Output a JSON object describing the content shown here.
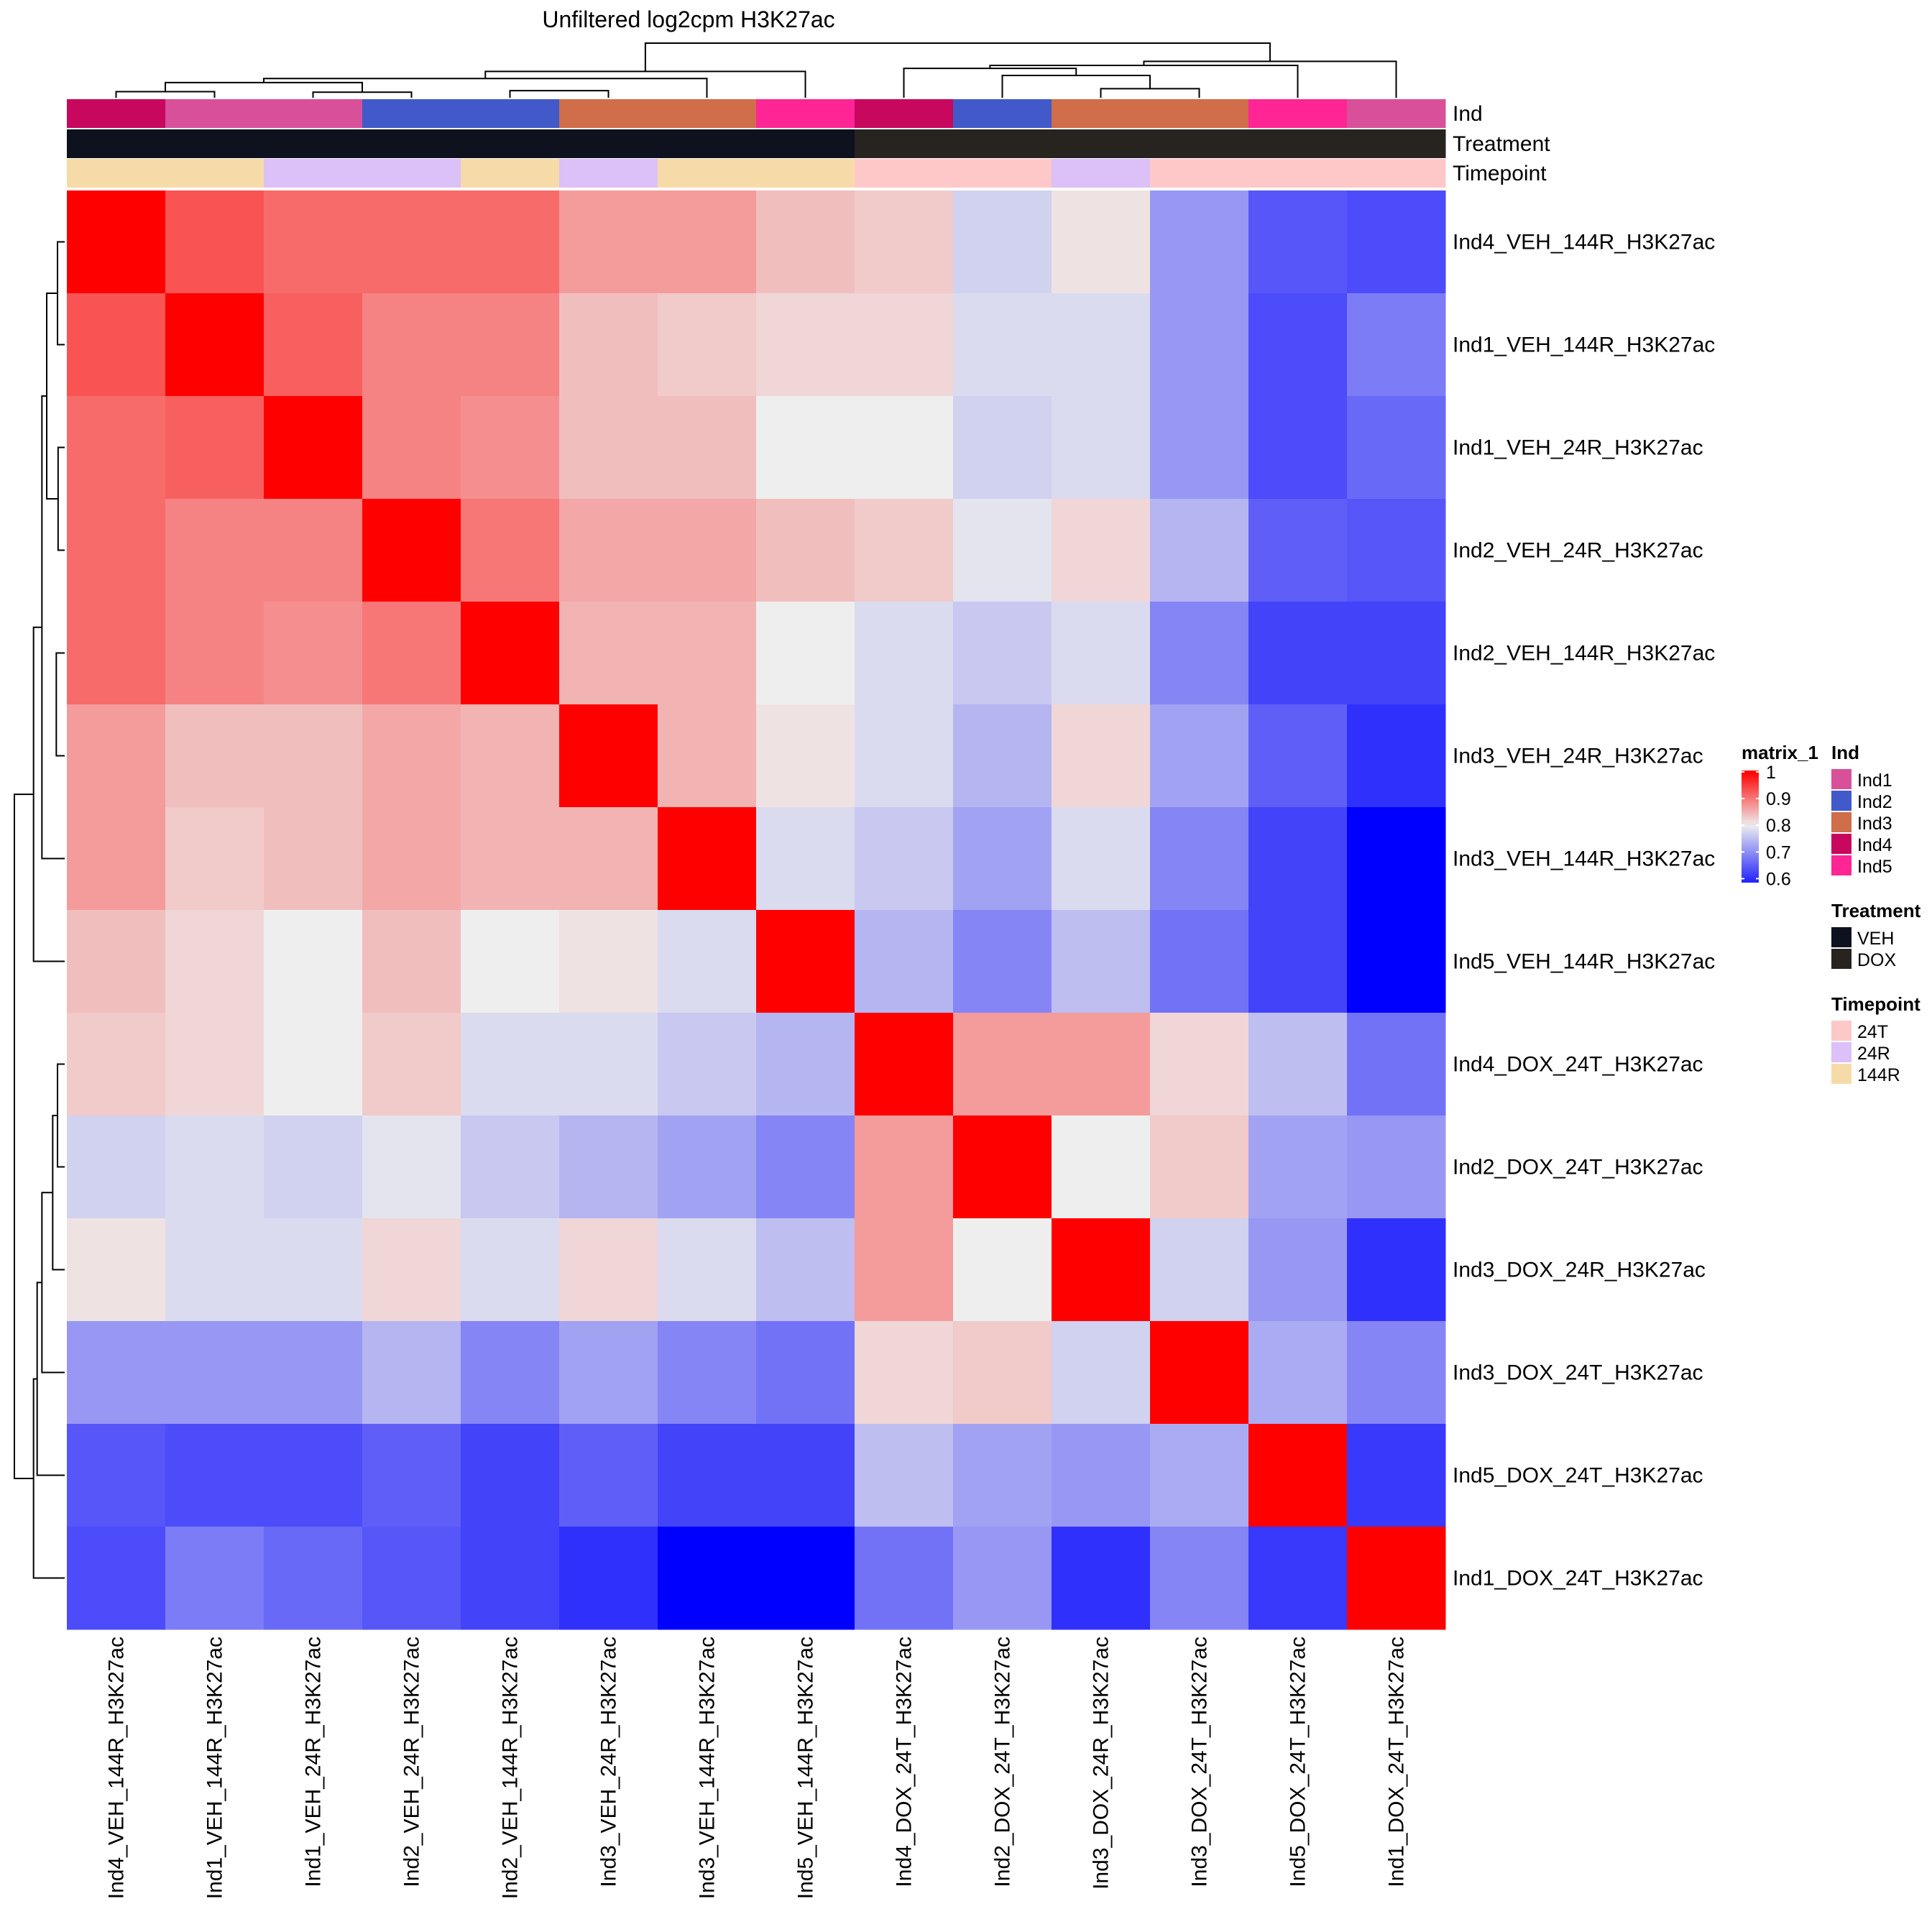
{
  "chart_data": {
    "type": "heatmap",
    "title": "Unfiltered log2cpm H3K27ac",
    "samples": [
      "Ind4_VEH_144R_H3K27ac",
      "Ind1_VEH_144R_H3K27ac",
      "Ind1_VEH_24R_H3K27ac",
      "Ind2_VEH_24R_H3K27ac",
      "Ind2_VEH_144R_H3K27ac",
      "Ind3_VEH_24R_H3K27ac",
      "Ind3_VEH_144R_H3K27ac",
      "Ind5_VEH_144R_H3K27ac",
      "Ind4_DOX_24T_H3K27ac",
      "Ind2_DOX_24T_H3K27ac",
      "Ind3_DOX_24R_H3K27ac",
      "Ind3_DOX_24T_H3K27ac",
      "Ind5_DOX_24T_H3K27ac",
      "Ind1_DOX_24T_H3K27ac"
    ],
    "values": [
      [
        1.0,
        0.93,
        0.91,
        0.91,
        0.91,
        0.87,
        0.87,
        0.84,
        0.83,
        0.77,
        0.81,
        0.71,
        0.64,
        0.63
      ],
      [
        0.93,
        1.0,
        0.92,
        0.89,
        0.89,
        0.84,
        0.83,
        0.82,
        0.82,
        0.78,
        0.78,
        0.71,
        0.63,
        0.68
      ],
      [
        0.91,
        0.92,
        1.0,
        0.89,
        0.88,
        0.84,
        0.84,
        0.8,
        0.8,
        0.77,
        0.78,
        0.71,
        0.63,
        0.66
      ],
      [
        0.91,
        0.89,
        0.89,
        1.0,
        0.9,
        0.86,
        0.86,
        0.84,
        0.83,
        0.79,
        0.82,
        0.74,
        0.65,
        0.64
      ],
      [
        0.91,
        0.89,
        0.88,
        0.9,
        1.0,
        0.85,
        0.85,
        0.8,
        0.78,
        0.76,
        0.78,
        0.69,
        0.62,
        0.62
      ],
      [
        0.87,
        0.84,
        0.84,
        0.86,
        0.85,
        1.0,
        0.85,
        0.81,
        0.78,
        0.74,
        0.82,
        0.72,
        0.65,
        0.6
      ],
      [
        0.87,
        0.83,
        0.84,
        0.86,
        0.85,
        0.85,
        1.0,
        0.78,
        0.76,
        0.72,
        0.78,
        0.69,
        0.62,
        0.55
      ],
      [
        0.84,
        0.82,
        0.8,
        0.84,
        0.8,
        0.81,
        0.78,
        1.0,
        0.74,
        0.69,
        0.75,
        0.67,
        0.62,
        0.55
      ],
      [
        0.83,
        0.82,
        0.8,
        0.83,
        0.78,
        0.78,
        0.76,
        0.74,
        1.0,
        0.87,
        0.87,
        0.82,
        0.75,
        0.67
      ],
      [
        0.77,
        0.78,
        0.77,
        0.79,
        0.76,
        0.74,
        0.72,
        0.69,
        0.87,
        1.0,
        0.8,
        0.83,
        0.72,
        0.71
      ],
      [
        0.81,
        0.78,
        0.78,
        0.82,
        0.78,
        0.82,
        0.78,
        0.75,
        0.87,
        0.8,
        1.0,
        0.77,
        0.71,
        0.6
      ],
      [
        0.71,
        0.71,
        0.71,
        0.74,
        0.69,
        0.72,
        0.69,
        0.67,
        0.82,
        0.83,
        0.77,
        1.0,
        0.73,
        0.69
      ],
      [
        0.64,
        0.63,
        0.63,
        0.65,
        0.62,
        0.65,
        0.62,
        0.62,
        0.75,
        0.72,
        0.71,
        0.73,
        1.0,
        0.61
      ],
      [
        0.63,
        0.68,
        0.66,
        0.64,
        0.62,
        0.6,
        0.55,
        0.55,
        0.67,
        0.71,
        0.6,
        0.69,
        0.61,
        1.0
      ]
    ],
    "color_scale": {
      "name": "matrix_1",
      "breaks": [
        0.55,
        0.8,
        1.0
      ],
      "colors": [
        "#0000ff",
        "#eeeeee",
        "#ff0000"
      ],
      "tick_labels": [
        "1",
        "0.9",
        "0.8",
        "0.7",
        "0.6"
      ],
      "tick_values": [
        1.0,
        0.9,
        0.8,
        0.7,
        0.6
      ]
    },
    "annotations": [
      {
        "name": "Ind",
        "values": [
          "Ind4",
          "Ind1",
          "Ind1",
          "Ind2",
          "Ind2",
          "Ind3",
          "Ind3",
          "Ind5",
          "Ind4",
          "Ind2",
          "Ind3",
          "Ind3",
          "Ind5",
          "Ind1"
        ],
        "levels": [
          "Ind1",
          "Ind2",
          "Ind3",
          "Ind4",
          "Ind5"
        ],
        "colors": {
          "Ind1": "#d8509a",
          "Ind2": "#4259c9",
          "Ind3": "#d06d4a",
          "Ind4": "#c8075e",
          "Ind5": "#ff2594"
        }
      },
      {
        "name": "Treatment",
        "values": [
          "VEH",
          "VEH",
          "VEH",
          "VEH",
          "VEH",
          "VEH",
          "VEH",
          "VEH",
          "DOX",
          "DOX",
          "DOX",
          "DOX",
          "DOX",
          "DOX"
        ],
        "levels": [
          "VEH",
          "DOX"
        ],
        "colors": {
          "VEH": "#0e121f",
          "DOX": "#27231f"
        }
      },
      {
        "name": "Timepoint",
        "values": [
          "144R",
          "144R",
          "24R",
          "24R",
          "144R",
          "24R",
          "144R",
          "144R",
          "24T",
          "24T",
          "24R",
          "24T",
          "24T",
          "24T"
        ],
        "levels": [
          "24T",
          "24R",
          "144R"
        ],
        "colors": {
          "24T": "#ffc8c8",
          "24R": "#dcc0f8",
          "144R": "#f6dba8"
        }
      }
    ],
    "column_dendrogram": [
      {
        "a": 1,
        "b": 2,
        "h": 0.6
      },
      {
        "a": 3,
        "b": 4,
        "h": 0.55
      },
      {
        "a": 5,
        "b": 6,
        "h": 0.7
      },
      {
        "a": 2,
        "b": 4,
        "h": 1.2
      },
      {
        "a": 1,
        "b": 4,
        "h": 1.5
      },
      {
        "a": 1,
        "b": 7,
        "h": 1.9
      },
      {
        "a": 1,
        "b": 8,
        "h": 2.6
      },
      {
        "a": 11,
        "b": 12,
        "h": 0.9
      },
      {
        "a": 10,
        "b": 12,
        "h": 2.2
      },
      {
        "a": 9,
        "b": 12,
        "h": 2.9
      },
      {
        "a": 9,
        "b": 13,
        "h": 3.2
      },
      {
        "a": 9,
        "b": 14,
        "h": 3.6
      },
      {
        "a": 1,
        "b": 14,
        "h": 5.4
      }
    ],
    "row_dendrogram": [
      {
        "a": 1,
        "b": 2,
        "h": 0.6
      },
      {
        "a": 3,
        "b": 4,
        "h": 0.55
      },
      {
        "a": 5,
        "b": 6,
        "h": 0.7
      },
      {
        "a": 2,
        "b": 4,
        "h": 1.2
      },
      {
        "a": 1,
        "b": 4,
        "h": 1.5
      },
      {
        "a": 1,
        "b": 7,
        "h": 1.9
      },
      {
        "a": 1,
        "b": 8,
        "h": 2.6
      },
      {
        "a": 9,
        "b": 10,
        "h": 0.6
      },
      {
        "a": 9,
        "b": 11,
        "h": 1.0
      },
      {
        "a": 9,
        "b": 12,
        "h": 1.9
      },
      {
        "a": 9,
        "b": 13,
        "h": 2.3
      },
      {
        "a": 9,
        "b": 14,
        "h": 2.6
      },
      {
        "a": 1,
        "b": 14,
        "h": 4.2
      }
    ]
  }
}
